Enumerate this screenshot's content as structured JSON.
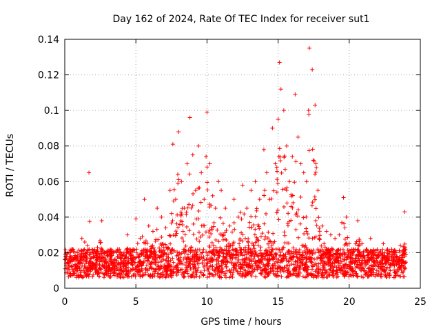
{
  "chart_data": {
    "type": "scatter",
    "title": "Day 162 of 2024, Rate Of TEC Index for receiver sut1",
    "xlabel": "GPS time / hours",
    "ylabel": "ROTI / TECUs",
    "xlim": [
      0,
      25
    ],
    "ylim": [
      0,
      0.14
    ],
    "xticks": [
      0,
      5,
      10,
      15,
      20,
      25
    ],
    "yticks": [
      0,
      0.02,
      0.04,
      0.06,
      0.08,
      0.1,
      0.12,
      0.14
    ],
    "xtick_labels": [
      "0",
      "5",
      "10",
      "15",
      "20",
      "25"
    ],
    "ytick_labels": [
      "0",
      "0.02",
      "0.04",
      "0.06",
      "0.08",
      "0.1",
      "0.12",
      "0.14"
    ],
    "grid": true,
    "marker": "plus",
    "marker_color": "#ff0000",
    "series": [
      {
        "name": "ROTI",
        "x": [
          0.1,
          0.3,
          0.5,
          0.8,
          1.0,
          1.2,
          1.4,
          1.6,
          1.7,
          1.8,
          2.0,
          2.3,
          2.6,
          2.9,
          3.2,
          3.6,
          4.0,
          4.4,
          4.8,
          5.0,
          5.3,
          5.6,
          5.9,
          6.2,
          6.5,
          6.8,
          7.1,
          7.4,
          7.6,
          7.8,
          8.0,
          8.2,
          8.4,
          8.6,
          8.8,
          9.0,
          9.2,
          9.4,
          9.6,
          9.8,
          10.0,
          10.2,
          10.4,
          10.6,
          10.8,
          11.0,
          11.3,
          11.6,
          11.9,
          12.2,
          12.5,
          12.8,
          13.1,
          13.4,
          13.7,
          14.0,
          14.2,
          14.4,
          14.6,
          14.8,
          15.0,
          15.1,
          15.2,
          15.4,
          15.6,
          15.8,
          16.0,
          16.2,
          16.4,
          16.6,
          16.8,
          17.0,
          17.2,
          17.4,
          17.6,
          17.8,
          18.1,
          18.4,
          18.7,
          19.0,
          19.3,
          19.6,
          19.8,
          20.0,
          20.3,
          20.6,
          20.9,
          21.2,
          21.5,
          21.8,
          22.1,
          22.4,
          22.7,
          23.0,
          23.3,
          23.6,
          23.9
        ],
        "y": [
          0.018,
          0.02,
          0.022,
          0.016,
          0.019,
          0.028,
          0.026,
          0.024,
          0.065,
          0.02,
          0.018,
          0.023,
          0.038,
          0.02,
          0.017,
          0.021,
          0.019,
          0.03,
          0.022,
          0.039,
          0.028,
          0.05,
          0.035,
          0.032,
          0.045,
          0.04,
          0.034,
          0.055,
          0.081,
          0.05,
          0.088,
          0.06,
          0.045,
          0.07,
          0.096,
          0.075,
          0.055,
          0.08,
          0.065,
          0.05,
          0.099,
          0.07,
          0.052,
          0.045,
          0.06,
          0.055,
          0.045,
          0.035,
          0.05,
          0.04,
          0.058,
          0.045,
          0.055,
          0.06,
          0.05,
          0.078,
          0.065,
          0.05,
          0.09,
          0.07,
          0.095,
          0.127,
          0.112,
          0.1,
          0.08,
          0.06,
          0.074,
          0.109,
          0.085,
          0.07,
          0.065,
          0.06,
          0.135,
          0.123,
          0.103,
          0.055,
          0.035,
          0.032,
          0.03,
          0.028,
          0.03,
          0.051,
          0.04,
          0.025,
          0.022,
          0.038,
          0.025,
          0.022,
          0.028,
          0.02,
          0.02,
          0.025,
          0.022,
          0.018,
          0.02,
          0.024,
          0.043
        ]
      }
    ]
  }
}
